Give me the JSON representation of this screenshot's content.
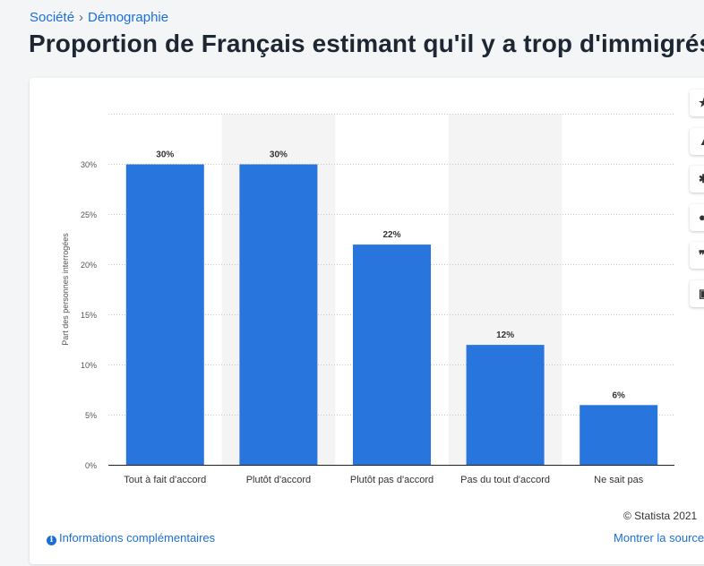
{
  "breadcrumb": {
    "items": [
      "Société",
      "Démographie"
    ],
    "separator": "›"
  },
  "page_title": "Proportion de Français estimant qu'il y a trop d'immigrés e",
  "colors": {
    "bar": "#2876dd",
    "link": "#1c6fd6",
    "band": "#f4f4f4",
    "grid": "#c8c8c8"
  },
  "toolbar": {
    "icons": [
      "star-icon",
      "bell-icon",
      "gear-icon",
      "share-icon",
      "quote-icon",
      "print-icon"
    ]
  },
  "chart_data": {
    "type": "bar",
    "categories": [
      "Tout à fait d'accord",
      "Plutôt d'accord",
      "Plutôt pas d'accord",
      "Pas du tout d'accord",
      "Ne sait pas"
    ],
    "values": [
      30,
      30,
      22,
      12,
      6
    ],
    "data_labels": [
      "30%",
      "30%",
      "22%",
      "12%",
      "6%"
    ],
    "ylabel": "Part des personnes interrogées",
    "yticks": [
      0,
      5,
      10,
      15,
      20,
      25,
      30
    ],
    "ytick_labels": [
      "0%",
      "5%",
      "10%",
      "15%",
      "20%",
      "25%",
      "30%"
    ],
    "ylim": [
      0,
      35
    ],
    "grid": true
  },
  "footer": {
    "credit": "© Statista 2021",
    "info_link": "Informations complémentaires",
    "source_link": "Montrer la source"
  }
}
